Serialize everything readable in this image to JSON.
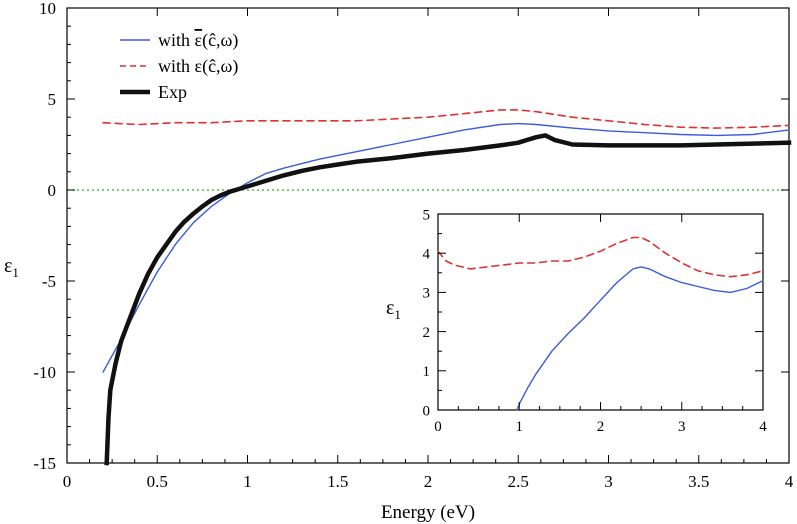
{
  "chart_data": [
    {
      "type": "line",
      "id": "main",
      "xlabel": "Energy (eV)",
      "ylabel": "ε",
      "ylabel_sub": "1",
      "xlim": [
        0,
        4
      ],
      "ylim": [
        -15,
        10
      ],
      "xticks": [
        0,
        0.5,
        1,
        1.5,
        2,
        2.5,
        3,
        3.5,
        4
      ],
      "xtick_labels": [
        "0",
        "0.5",
        "1",
        "1.5",
        "2",
        "2.5",
        "3",
        "3.5",
        "4"
      ],
      "yticks": [
        -15,
        -10,
        -5,
        0,
        5,
        10
      ],
      "ytick_labels": [
        "-15",
        "-10",
        "-5",
        "0",
        "5",
        "10"
      ],
      "reference_line": {
        "y": 0,
        "color": "#33aa33",
        "style": "dotted"
      },
      "legend_position": "top-left",
      "series": [
        {
          "name": "with ε̄(ĉ,ω)",
          "legend_prefix": "with ",
          "legend_symbol": "ε",
          "legend_args": "(ĉ,ω)",
          "overbar": true,
          "color": "#3b5bdb",
          "style": "solid",
          "x": [
            0.2,
            0.3,
            0.4,
            0.5,
            0.6,
            0.7,
            0.8,
            0.9,
            1.0,
            1.1,
            1.2,
            1.4,
            1.6,
            1.8,
            2.0,
            2.2,
            2.4,
            2.5,
            2.6,
            2.8,
            3.0,
            3.2,
            3.4,
            3.6,
            3.8,
            4.0
          ],
          "y": [
            -10,
            -8.2,
            -6.3,
            -4.5,
            -3.0,
            -1.8,
            -0.9,
            -0.2,
            0.4,
            0.9,
            1.2,
            1.7,
            2.1,
            2.5,
            2.9,
            3.3,
            3.6,
            3.65,
            3.6,
            3.4,
            3.25,
            3.15,
            3.05,
            3.0,
            3.05,
            3.3
          ]
        },
        {
          "name": "with ε(ĉ,ω)",
          "legend_prefix": "with ",
          "legend_symbol": "ε",
          "legend_args": "(ĉ,ω)",
          "overbar": false,
          "color": "#e03131",
          "style": "dashed",
          "x": [
            0.2,
            0.4,
            0.6,
            0.8,
            1.0,
            1.2,
            1.4,
            1.6,
            1.8,
            2.0,
            2.2,
            2.4,
            2.5,
            2.6,
            2.8,
            3.0,
            3.2,
            3.4,
            3.6,
            3.8,
            4.0
          ],
          "y": [
            3.7,
            3.6,
            3.7,
            3.7,
            3.8,
            3.8,
            3.8,
            3.8,
            3.9,
            4.0,
            4.2,
            4.4,
            4.4,
            4.3,
            4.0,
            3.8,
            3.6,
            3.45,
            3.4,
            3.45,
            3.55
          ]
        },
        {
          "name": "Exp",
          "legend_prefix": "Exp",
          "legend_symbol": "",
          "legend_args": "",
          "overbar": false,
          "color": "#111111",
          "style": "thick",
          "x": [
            0.22,
            0.23,
            0.24,
            0.25,
            0.27,
            0.3,
            0.35,
            0.4,
            0.45,
            0.5,
            0.55,
            0.6,
            0.65,
            0.7,
            0.75,
            0.8,
            0.85,
            0.9,
            0.95,
            1.0,
            1.1,
            1.2,
            1.3,
            1.4,
            1.5,
            1.6,
            1.8,
            2.0,
            2.2,
            2.4,
            2.5,
            2.55,
            2.6,
            2.65,
            2.7,
            2.8,
            3.0,
            3.2,
            3.4,
            3.6,
            3.8,
            4.0
          ],
          "y": [
            -15,
            -12.5,
            -11.0,
            -10.5,
            -9.5,
            -8.3,
            -7.0,
            -5.7,
            -4.6,
            -3.7,
            -3.0,
            -2.3,
            -1.75,
            -1.3,
            -0.9,
            -0.55,
            -0.3,
            -0.1,
            0.05,
            0.2,
            0.5,
            0.8,
            1.05,
            1.25,
            1.4,
            1.55,
            1.75,
            2.0,
            2.2,
            2.45,
            2.6,
            2.75,
            2.9,
            3.0,
            2.75,
            2.5,
            2.45,
            2.45,
            2.45,
            2.5,
            2.55,
            2.6
          ]
        }
      ]
    },
    {
      "type": "line",
      "id": "inset",
      "xlabel": "",
      "ylabel": "ε",
      "ylabel_sub": "1",
      "xlim": [
        0,
        4
      ],
      "ylim": [
        0,
        5
      ],
      "xticks": [
        0,
        1,
        2,
        3,
        4
      ],
      "xtick_labels": [
        "0",
        "1",
        "2",
        "3",
        "4"
      ],
      "yticks": [
        0,
        1,
        2,
        3,
        4,
        5
      ],
      "ytick_labels": [
        "0",
        "1",
        "2",
        "3",
        "4",
        "5"
      ],
      "series": [
        {
          "name": "with ε̄(ĉ,ω)",
          "color": "#3b5bdb",
          "style": "solid",
          "x": [
            0.97,
            1.0,
            1.1,
            1.2,
            1.4,
            1.6,
            1.8,
            2.0,
            2.2,
            2.4,
            2.5,
            2.6,
            2.8,
            3.0,
            3.2,
            3.4,
            3.6,
            3.8,
            4.0
          ],
          "y": [
            0.0,
            0.15,
            0.55,
            0.9,
            1.5,
            1.95,
            2.35,
            2.8,
            3.25,
            3.6,
            3.65,
            3.6,
            3.4,
            3.25,
            3.15,
            3.05,
            3.0,
            3.1,
            3.3
          ]
        },
        {
          "name": "with ε(ĉ,ω)",
          "color": "#e03131",
          "style": "dashed",
          "x": [
            0.0,
            0.1,
            0.2,
            0.4,
            0.6,
            0.8,
            1.0,
            1.2,
            1.4,
            1.6,
            1.8,
            2.0,
            2.2,
            2.4,
            2.5,
            2.6,
            2.8,
            3.0,
            3.2,
            3.4,
            3.6,
            3.8,
            4.0
          ],
          "y": [
            4.05,
            3.8,
            3.7,
            3.6,
            3.65,
            3.7,
            3.75,
            3.75,
            3.8,
            3.8,
            3.9,
            4.05,
            4.25,
            4.4,
            4.4,
            4.3,
            4.0,
            3.75,
            3.55,
            3.45,
            3.4,
            3.45,
            3.55
          ]
        }
      ]
    }
  ]
}
